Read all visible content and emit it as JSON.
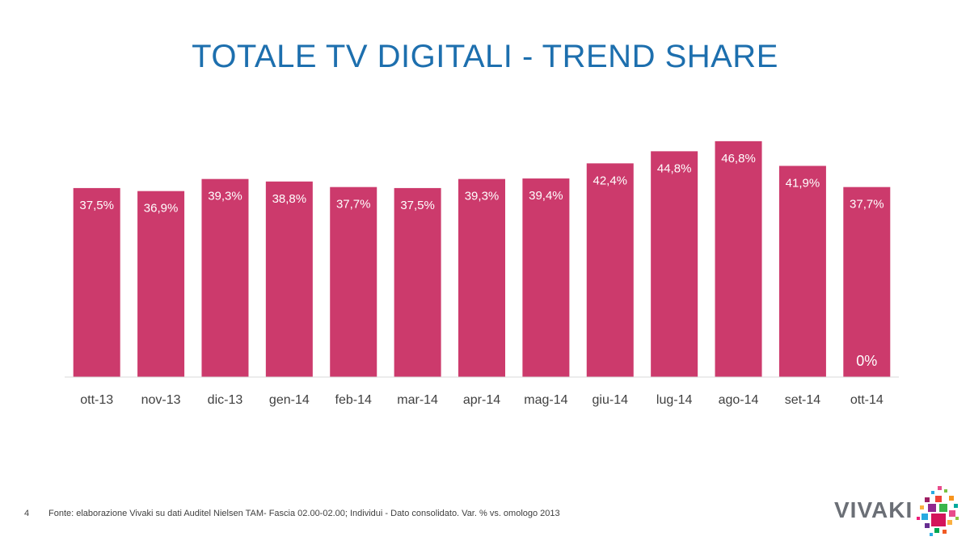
{
  "page": {
    "title": "TOTALE TV DIGITALI - TREND SHARE",
    "slide_number": "4",
    "source": "Fonte: elaborazione Vivaki su dati Auditel Nielsen TAM- Fascia 02.00-02.00; Individui - Dato consolidato. Var. % vs. omologo 2013",
    "logo_text": "VIVAKI"
  },
  "colors": {
    "bar": "#cc3a6c",
    "axis": "#d9d9d9",
    "title": "#1d6fae"
  },
  "chart_data": {
    "type": "bar",
    "title": "TOTALE TV DIGITALI - TREND SHARE",
    "categories": [
      "ott-13",
      "nov-13",
      "dic-13",
      "gen-14",
      "feb-14",
      "mar-14",
      "apr-14",
      "mag-14",
      "giu-14",
      "lug-14",
      "ago-14",
      "set-14",
      "ott-14"
    ],
    "values": [
      37.5,
      36.9,
      39.3,
      38.8,
      37.7,
      37.5,
      39.3,
      39.4,
      42.4,
      44.8,
      46.8,
      41.9,
      37.7
    ],
    "labels": [
      "37,5%",
      "36,9%",
      "39,3%",
      "38,8%",
      "37,7%",
      "37,5%",
      "39,3%",
      "39,4%",
      "42,4%",
      "44,8%",
      "46,8%",
      "41,9%",
      "37,7%"
    ],
    "extra_label": "0%",
    "ylim": [
      0,
      47.9
    ],
    "xlabel": "",
    "ylabel": "",
    "grid": false,
    "legend": "none"
  }
}
